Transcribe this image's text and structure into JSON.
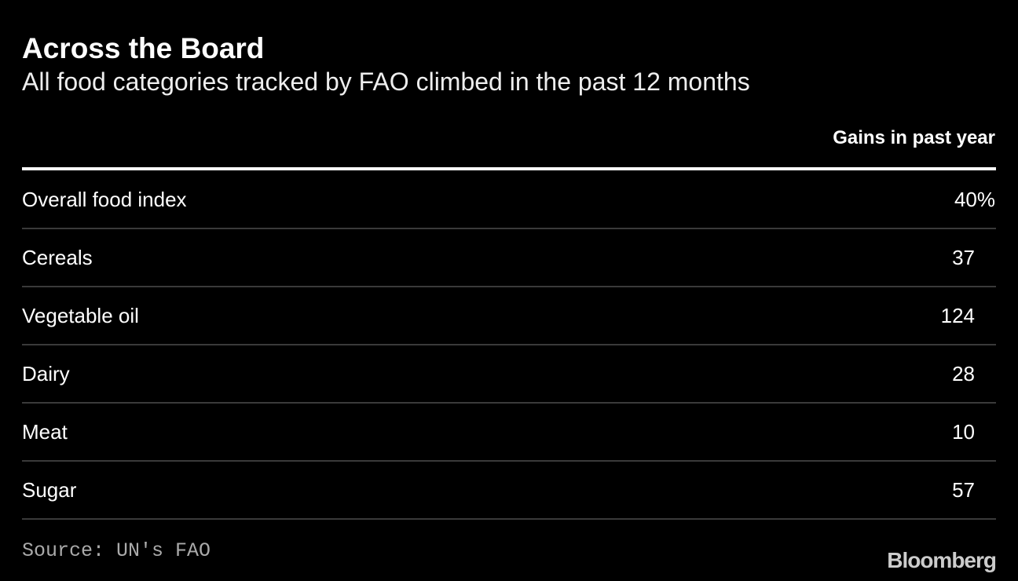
{
  "header": {
    "title": "Across the Board",
    "subtitle": "All food categories tracked by FAO climbed in the past 12 months"
  },
  "table": {
    "columns": [
      "Gains in past year"
    ],
    "rows": [
      [
        "Overall food index",
        "40%"
      ],
      [
        "Cereals",
        "37"
      ],
      [
        "Vegetable oil",
        "124"
      ],
      [
        "Dairy",
        "28"
      ],
      [
        "Meat",
        "10"
      ],
      [
        "Sugar",
        "57"
      ]
    ]
  },
  "footer": {
    "source": "Source: UN's FAO",
    "brand": "Bloomberg"
  }
}
